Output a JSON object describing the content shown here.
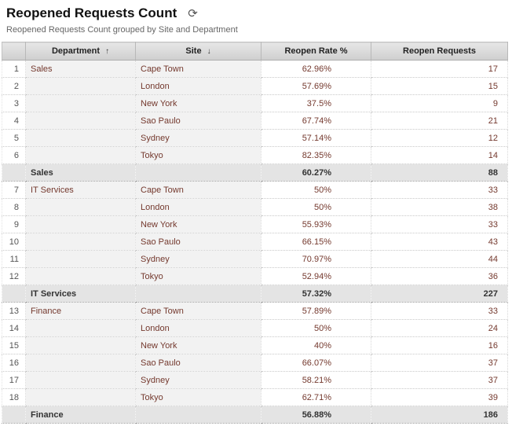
{
  "header": {
    "title": "Reopened Requests Count",
    "subtitle": "Reopened Requests Count grouped by Site and Department",
    "refresh_icon": "⟳"
  },
  "table": {
    "sort_asc_glyph": "↑",
    "sort_desc_glyph": "↓",
    "columns": [
      {
        "label": ""
      },
      {
        "label": "Department",
        "sort": "asc"
      },
      {
        "label": "Site",
        "sort": "desc"
      },
      {
        "label": "Reopen Rate %",
        "sort": null
      },
      {
        "label": "Reopen Requests",
        "sort": null
      }
    ],
    "groups": [
      {
        "department": "Sales",
        "rows": [
          {
            "n": "1",
            "site": "Cape Town",
            "rate": "62.96%",
            "requests": "17"
          },
          {
            "n": "2",
            "site": "London",
            "rate": "57.69%",
            "requests": "15"
          },
          {
            "n": "3",
            "site": "New York",
            "rate": "37.5%",
            "requests": "9"
          },
          {
            "n": "4",
            "site": "Sao Paulo",
            "rate": "67.74%",
            "requests": "21"
          },
          {
            "n": "5",
            "site": "Sydney",
            "rate": "57.14%",
            "requests": "12"
          },
          {
            "n": "6",
            "site": "Tokyo",
            "rate": "82.35%",
            "requests": "14"
          }
        ],
        "summary": {
          "label": "Sales",
          "rate": "60.27%",
          "requests": "88"
        }
      },
      {
        "department": "IT Services",
        "rows": [
          {
            "n": "7",
            "site": "Cape Town",
            "rate": "50%",
            "requests": "33"
          },
          {
            "n": "8",
            "site": "London",
            "rate": "50%",
            "requests": "38"
          },
          {
            "n": "9",
            "site": "New York",
            "rate": "55.93%",
            "requests": "33"
          },
          {
            "n": "10",
            "site": "Sao Paulo",
            "rate": "66.15%",
            "requests": "43"
          },
          {
            "n": "11",
            "site": "Sydney",
            "rate": "70.97%",
            "requests": "44"
          },
          {
            "n": "12",
            "site": "Tokyo",
            "rate": "52.94%",
            "requests": "36"
          }
        ],
        "summary": {
          "label": "IT Services",
          "rate": "57.32%",
          "requests": "227"
        }
      },
      {
        "department": "Finance",
        "rows": [
          {
            "n": "13",
            "site": "Cape Town",
            "rate": "57.89%",
            "requests": "33"
          },
          {
            "n": "14",
            "site": "London",
            "rate": "50%",
            "requests": "24"
          },
          {
            "n": "15",
            "site": "New York",
            "rate": "40%",
            "requests": "16"
          },
          {
            "n": "16",
            "site": "Sao Paulo",
            "rate": "66.07%",
            "requests": "37"
          },
          {
            "n": "17",
            "site": "Sydney",
            "rate": "58.21%",
            "requests": "37"
          },
          {
            "n": "18",
            "site": "Tokyo",
            "rate": "62.71%",
            "requests": "39"
          }
        ],
        "summary": {
          "label": "Finance",
          "rate": "56.88%",
          "requests": "186"
        }
      }
    ]
  },
  "colors": {
    "data_text": "#74392e",
    "header_bg": "#d9d9d9",
    "summary_bg": "#e4e4e4",
    "grouped_column_bg": "#f2f2f2"
  }
}
